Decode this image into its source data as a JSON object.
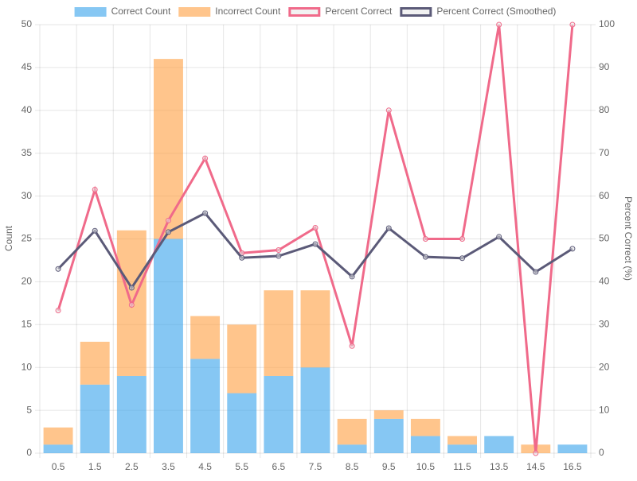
{
  "chart_data": {
    "type": "bar",
    "categories": [
      "0.5",
      "1.5",
      "2.5",
      "3.5",
      "4.5",
      "5.5",
      "6.5",
      "7.5",
      "8.5",
      "9.5",
      "10.5",
      "11.5",
      "13.5",
      "14.5",
      "16.5"
    ],
    "series": [
      {
        "name": "Correct Count",
        "type": "bar",
        "stack": true,
        "color": "rgba(54,162,235,0.6)",
        "values": [
          1,
          8,
          9,
          25,
          11,
          7,
          9,
          10,
          1,
          4,
          2,
          1,
          2,
          0,
          1
        ]
      },
      {
        "name": "Incorrect Count",
        "type": "bar",
        "stack": true,
        "color": "rgba(255,159,64,0.6)",
        "values": [
          2,
          5,
          17,
          21,
          5,
          8,
          10,
          9,
          3,
          1,
          2,
          1,
          0,
          1,
          0
        ]
      },
      {
        "name": "Percent Correct",
        "type": "line",
        "axis": "y2",
        "color": "#f06a8a",
        "values": [
          33.3,
          61.5,
          34.6,
          54.3,
          68.8,
          46.7,
          47.4,
          52.6,
          25,
          80,
          50,
          50,
          100,
          0,
          100
        ]
      },
      {
        "name": "Percent Correct (Smoothed)",
        "type": "line",
        "axis": "y2",
        "color": "#5b5a78",
        "values": [
          43.0,
          51.9,
          38.6,
          51.6,
          56.0,
          45.6,
          46.0,
          48.8,
          41.2,
          52.5,
          45.8,
          45.5,
          50.5,
          42.3,
          47.7
        ]
      }
    ],
    "ylabel": "Count",
    "y2label": "Percent Correct (%)",
    "ylim": [
      0,
      50
    ],
    "yticks": [
      0,
      5,
      10,
      15,
      20,
      25,
      30,
      35,
      40,
      45,
      50
    ],
    "y2lim": [
      0,
      100
    ],
    "y2ticks": [
      0,
      10,
      20,
      30,
      40,
      50,
      60,
      70,
      80,
      90,
      100
    ],
    "grid": true,
    "legend": "top"
  }
}
